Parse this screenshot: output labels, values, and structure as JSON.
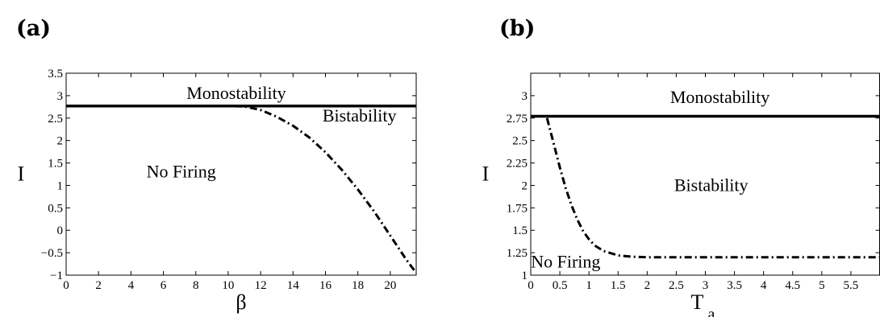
{
  "chart_data": [
    {
      "type": "line",
      "panel_label": "(a)",
      "xlabel": "β",
      "xlabel_sub": "",
      "ylabel": "I",
      "xlim": [
        0,
        21.6
      ],
      "ylim": [
        -1,
        3.5
      ],
      "xticks": [
        0,
        2,
        4,
        6,
        8,
        10,
        12,
        14,
        16,
        18,
        20
      ],
      "yticks": [
        -1,
        -0.5,
        0,
        0.5,
        1,
        1.5,
        2,
        2.5,
        3,
        3.5
      ],
      "ytick_labels": [
        "−1",
        "−0.5",
        "0",
        "0.5",
        "1",
        "1.5",
        "2",
        "2.5",
        "3",
        "3.5"
      ],
      "grid": false,
      "regions": [
        {
          "text": "Monostability",
          "x": 10.5,
          "y": 3.05
        },
        {
          "text": "Bistability",
          "x": 18.1,
          "y": 2.55
        },
        {
          "text": "No Firing",
          "x": 7.1,
          "y": 1.3
        }
      ],
      "series": [
        {
          "style": "solid",
          "x": [
            0,
            21.6
          ],
          "y": [
            2.77,
            2.77
          ]
        },
        {
          "style": "dashdot",
          "x": [
            0,
            10,
            11,
            12,
            13,
            14,
            15,
            16,
            17,
            18,
            19,
            20,
            21,
            21.6
          ],
          "y": [
            2.77,
            2.77,
            2.76,
            2.68,
            2.53,
            2.33,
            2.07,
            1.74,
            1.35,
            0.91,
            0.42,
            -0.12,
            -0.66,
            -0.95
          ]
        }
      ]
    },
    {
      "type": "line",
      "panel_label": "(b)",
      "xlabel": "T",
      "xlabel_sub": "a",
      "ylabel": "I",
      "xlim": [
        0,
        6
      ],
      "ylim": [
        1,
        3.25
      ],
      "xticks": [
        0,
        0.5,
        1,
        1.5,
        2,
        2.5,
        3,
        3.5,
        4,
        4.5,
        5,
        5.5
      ],
      "yticks": [
        1,
        1.25,
        1.5,
        1.75,
        2,
        2.25,
        2.5,
        2.75,
        3
      ],
      "ytick_labels": [
        "1",
        "1.25",
        "1.5",
        "1.75",
        "2",
        "2.25",
        "2.5",
        "2.75",
        "3"
      ],
      "grid": false,
      "regions": [
        {
          "text": "Monostability",
          "x": 3.25,
          "y": 2.98
        },
        {
          "text": "Bistability",
          "x": 3.1,
          "y": 2.0
        },
        {
          "text": "No Firing",
          "x": 0.6,
          "y": 1.15
        }
      ],
      "series": [
        {
          "style": "solid",
          "x": [
            0,
            6
          ],
          "y": [
            2.77,
            2.77
          ]
        },
        {
          "style": "dashdot",
          "x": [
            0.28,
            0.4,
            0.5,
            0.6,
            0.7,
            0.8,
            0.9,
            1.0,
            1.1,
            1.25,
            1.5,
            1.75,
            2.0,
            3.0,
            4.0,
            5.0,
            6.0
          ],
          "y": [
            2.75,
            2.45,
            2.2,
            1.97,
            1.78,
            1.62,
            1.49,
            1.4,
            1.33,
            1.27,
            1.22,
            1.205,
            1.2,
            1.2,
            1.2,
            1.2,
            1.2
          ]
        }
      ]
    }
  ]
}
